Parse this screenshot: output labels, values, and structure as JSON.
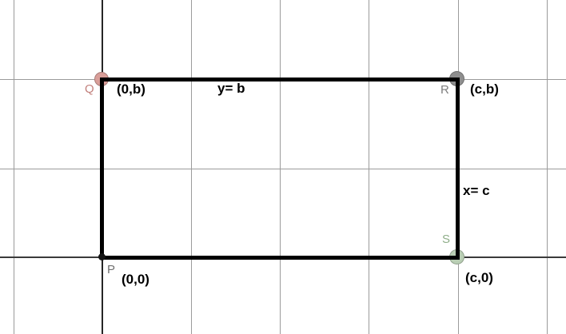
{
  "figure": {
    "points": {
      "P": {
        "letter": "P",
        "coordinates": "(0,0)"
      },
      "Q": {
        "letter": "Q",
        "coordinates": "(0,b)"
      },
      "R": {
        "letter": "R",
        "coordinates": "(c,b)"
      },
      "S": {
        "letter": "S",
        "coordinates": "(c,0)"
      }
    },
    "edge_labels": {
      "top": "y= b",
      "right": "x= c"
    },
    "colors": {
      "background": "#ffffff",
      "grid_line": "#9b9b9b",
      "y_axis": "#262626",
      "x_axis": "#3a3a3a",
      "rectangle_edge": "#000000",
      "coordinate_text": "#000000",
      "point_p_fill": "#141414",
      "point_q_fill": "#d99e99",
      "point_r_fill": "#8e8e8e",
      "point_s_fill": "#b9ceb4",
      "label_p": "#707070",
      "label_q": "#c2807c",
      "label_r": "#7e7e7e",
      "label_s": "#8fae89"
    }
  }
}
